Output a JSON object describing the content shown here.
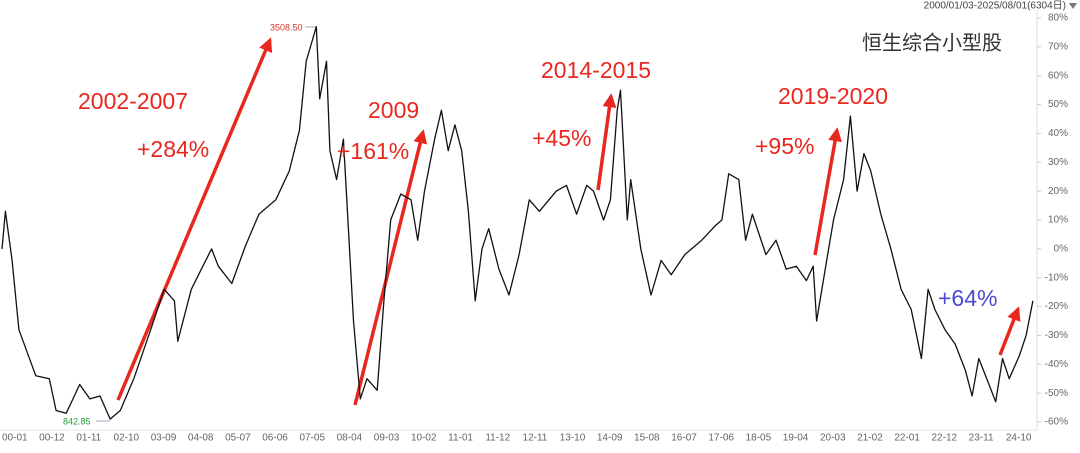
{
  "chart_data": {
    "type": "line",
    "title": "恒生综合小型股",
    "subtitle": "2000/01/03-2025/08/01(6304日)",
    "color": "#111111",
    "x": [
      "00-01",
      "00-02",
      "00-04",
      "00-06",
      "00-11",
      "01-03",
      "01-05",
      "01-08",
      "01-12",
      "02-03",
      "02-06",
      "02-09",
      "02-12",
      "03-04",
      "03-09",
      "04-01",
      "04-04",
      "04-05",
      "04-09",
      "04-12",
      "05-03",
      "05-05",
      "05-09",
      "06-01",
      "06-05",
      "06-10",
      "07-02",
      "07-05",
      "07-07",
      "07-10",
      "07-11",
      "08-01",
      "08-02",
      "08-04",
      "08-06",
      "08-07",
      "08-09",
      "08-11",
      "09-01",
      "09-04",
      "09-06",
      "09-08",
      "09-11",
      "10-02",
      "10-04",
      "10-06",
      "10-09",
      "10-11",
      "11-01",
      "11-03",
      "11-05",
      "11-07",
      "11-09",
      "11-11",
      "12-01",
      "12-04",
      "12-07",
      "12-10",
      "13-01",
      "13-04",
      "13-09",
      "13-12",
      "14-03",
      "14-06",
      "14-08",
      "14-11",
      "15-01",
      "15-03",
      "15-04",
      "15-06",
      "15-07",
      "15-10",
      "16-01",
      "16-04",
      "16-07",
      "16-11",
      "17-04",
      "17-08",
      "17-10",
      "17-12",
      "18-03",
      "18-05",
      "18-07",
      "18-11",
      "19-02",
      "19-05",
      "19-08",
      "19-11",
      "20-01",
      "20-02",
      "20-05",
      "20-07",
      "20-10",
      "20-12",
      "21-02",
      "21-04",
      "21-06",
      "21-09",
      "21-12",
      "22-03",
      "22-06",
      "22-09",
      "22-11",
      "23-01",
      "23-04",
      "23-07",
      "23-10",
      "23-12",
      "24-02",
      "24-05",
      "24-07",
      "24-09",
      "24-11",
      "25-02",
      "25-04",
      "25-06"
    ],
    "values": [
      0,
      13,
      -4,
      -28,
      -44,
      -45,
      -56,
      -57,
      -47,
      -52,
      -51,
      -59,
      -56,
      -45,
      -28,
      -14,
      -18,
      -32,
      -14,
      -7,
      0,
      -6,
      -12,
      1,
      12,
      17,
      27,
      41,
      65,
      77,
      52,
      65,
      34,
      24,
      38,
      17,
      -25,
      -52,
      -45,
      -49,
      -18,
      10,
      19,
      17,
      3,
      20,
      38,
      48,
      34,
      43,
      34,
      13,
      -18,
      0,
      7,
      -7,
      -16,
      -2,
      17,
      13,
      20,
      22,
      12,
      22,
      20,
      10,
      17,
      48,
      55,
      10,
      24,
      0,
      -16,
      -4,
      -9,
      -2,
      3,
      8,
      10,
      26,
      24,
      3,
      12,
      -2,
      3,
      -7,
      -6,
      -11,
      -6,
      -25,
      -4,
      10,
      24,
      46,
      20,
      33,
      27,
      12,
      0,
      -14,
      -21,
      -38,
      -14,
      -21,
      -28,
      -33,
      -42,
      -51,
      -38,
      -47,
      -53,
      -38,
      -45,
      -37,
      -30,
      -18
    ],
    "xticks": [
      "00-01",
      "00-12",
      "01-11",
      "02-10",
      "03-09",
      "04-08",
      "05-07",
      "06-06",
      "07-05",
      "08-04",
      "09-03",
      "10-02",
      "11-01",
      "11-12",
      "12-11",
      "13-10",
      "14-09",
      "15-08",
      "16-07",
      "17-06",
      "18-05",
      "19-04",
      "20-03",
      "21-02",
      "22-01",
      "22-12",
      "23-11",
      "24-10"
    ],
    "ylim": [
      -60,
      80
    ],
    "yticks": [
      {
        "value": 80,
        "label": "80%"
      },
      {
        "value": 70,
        "label": "70%"
      },
      {
        "value": 60,
        "label": "60%"
      },
      {
        "value": 50,
        "label": "50%"
      },
      {
        "value": 40,
        "label": "40%"
      },
      {
        "value": 30,
        "label": "30%"
      },
      {
        "value": 20,
        "label": "20%"
      },
      {
        "value": 10,
        "label": "10%"
      },
      {
        "value": 0,
        "label": "0%"
      },
      {
        "value": -10,
        "label": "-10%"
      },
      {
        "value": -20,
        "label": "-20%"
      },
      {
        "value": -30,
        "label": "-30%"
      },
      {
        "value": -40,
        "label": "-40%"
      },
      {
        "value": -50,
        "label": "-50%"
      },
      {
        "value": -60,
        "label": "-60%"
      }
    ],
    "annotations": [
      {
        "text": "2002-2007",
        "color": "#e8271f"
      },
      {
        "text": "+284%",
        "color": "#e8271f"
      },
      {
        "text": "2009",
        "color": "#e8271f"
      },
      {
        "text": "+161%",
        "color": "#e8271f"
      },
      {
        "text": "2014-2015",
        "color": "#e8271f"
      },
      {
        "text": "+45%",
        "color": "#e8271f"
      },
      {
        "text": "2019-2020",
        "color": "#e8271f"
      },
      {
        "text": "+95%",
        "color": "#e8271f"
      },
      {
        "text": "+64%",
        "color": "#4a4ad0"
      },
      {
        "text": "3508.50",
        "color": "#d0342c"
      },
      {
        "text": "842.85",
        "color": "#2a9a3a"
      }
    ]
  }
}
